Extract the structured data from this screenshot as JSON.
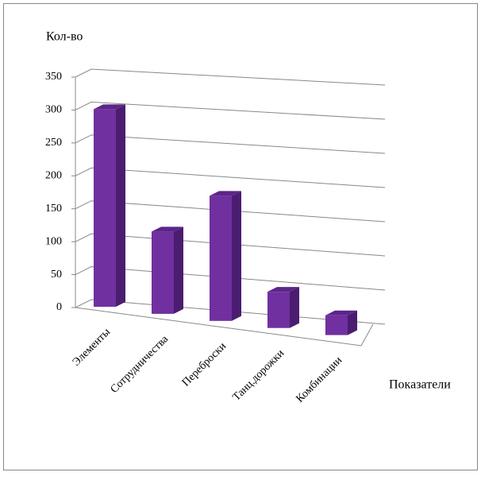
{
  "chart_data": {
    "type": "bar3d",
    "y_label": "Кол-во",
    "x_label": "Показатели",
    "categories": [
      "Элементы",
      "Сотрудничества",
      "Переброски",
      "Танц.дорожки",
      "Комбинации"
    ],
    "values": [
      300,
      125,
      190,
      55,
      30
    ],
    "color": "#7030a0",
    "ylim": [
      0,
      350
    ],
    "yticks": [
      0,
      50,
      100,
      150,
      200,
      250,
      300,
      350
    ],
    "grid": true
  }
}
